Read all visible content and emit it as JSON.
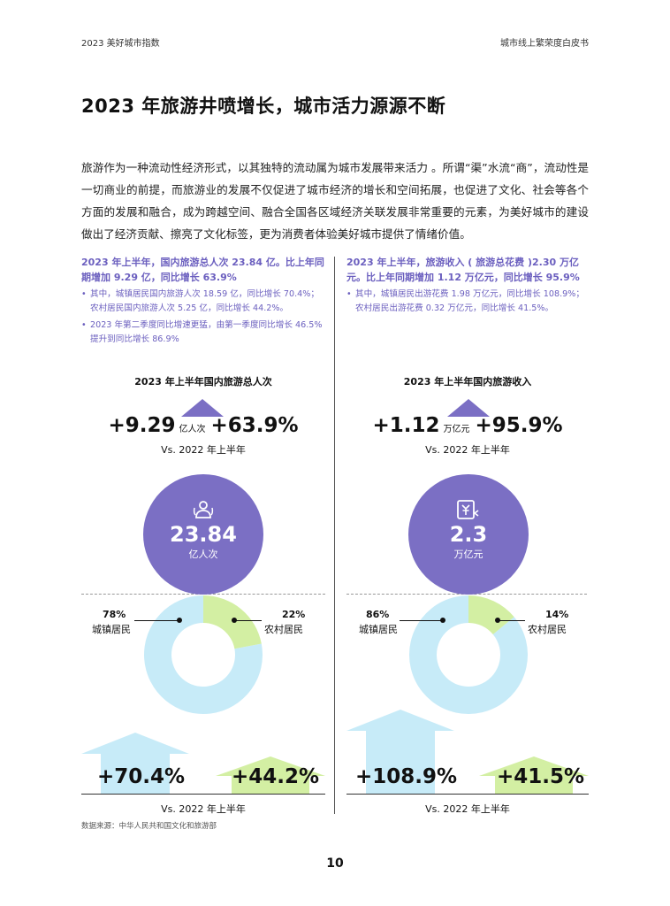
{
  "header": {
    "left": "2023 美好城市指数",
    "right": "城市线上繁荣度白皮书"
  },
  "title": "2023 年旅游井喷增长，城市活力源源不断",
  "intro": "旅游作为一种流动性经济形式，以其独特的流动属为城市发展带来活力 。所谓“渠”水流“商”，流动性是一切商业的前提，而旅游业的发展不仅促进了城市经济的增长和空间拓展，也促进了文化、社会等各个方面的发展和融合，成为跨越空间、融合全国各区域经济关联发展非常重要的元素，为美好城市的建设做出了经济贡献、擦亮了文化标签，更为消费者体验美好城市提供了情绪价值。",
  "left": {
    "highlight": "2023 年上半年，国内旅游总人次 23.84 亿。比上年同期增加 9.29 亿，同比增长 63.9%",
    "bullets": [
      "其中，城镇居民国内旅游人次 18.59 亿，同比增长 70.4%；农村居民国内旅游人次 5.25 亿，同比增长 44.2%。",
      "2023 年第二季度同比增速更猛，由第一季度同比增长 46.5% 提升到同比增长 86.9%"
    ],
    "chart_title": "2023 年上半年国内旅游总人次",
    "increase": "+9.29",
    "increase_unit": "亿人次",
    "growth": "+63.9%",
    "vs": "Vs. 2022 年上半年",
    "icon": "people-icon",
    "total": "23.84",
    "total_unit": "亿人次",
    "urban_pct": "78%",
    "urban_label": "城镇居民",
    "rural_pct": "22%",
    "rural_label": "农村居民",
    "urban_growth": "+70.4%",
    "rural_growth": "+44.2%",
    "vs_bottom": "Vs. 2022 年上半年"
  },
  "right": {
    "highlight": "2023 年上半年，旅游收入 ( 旅游总花费 )2.30 万亿元。比上年同期增加 1.12 万亿元，同比增长 95.9%",
    "bullets": [
      "其中，城镇居民出游花费 1.98 万亿元，同比增长 108.9%；农村居民出游花费 0.32 万亿元，同比增长 41.5%。"
    ],
    "chart_title": "2023 年上半年国内旅游收入",
    "increase": "+1.12",
    "increase_unit": "万亿元",
    "growth": "+95.9%",
    "vs": "Vs. 2022 年上半年",
    "icon": "yuan-money-icon",
    "total": "2.3",
    "total_unit": "万亿元",
    "urban_pct": "86%",
    "urban_label": "城镇居民",
    "rural_pct": "14%",
    "rural_label": "农村居民",
    "urban_growth": "+108.9%",
    "rural_growth": "+41.5%",
    "vs_bottom": "Vs. 2022 年上半年"
  },
  "donuts": [
    {
      "urban": 78,
      "rural": 22
    },
    {
      "urban": 86,
      "rural": 14
    }
  ],
  "colors": {
    "purple": "#7b6fc4",
    "text_purple": "#6b5fbf",
    "light_blue": "#c7ebf8",
    "light_green": "#d3efa3"
  },
  "source": "数据来源：中华人民共和国文化和旅游部",
  "page_number": "10"
}
